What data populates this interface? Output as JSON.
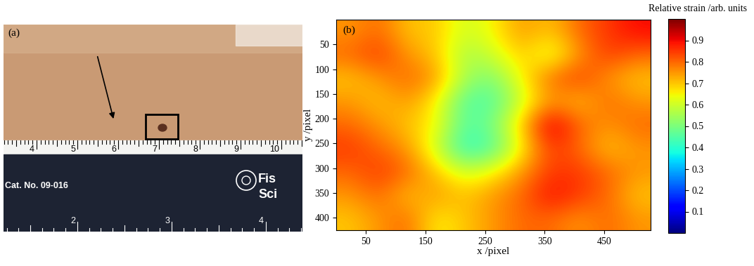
{
  "panel_a": {
    "panel_label": "(a)",
    "ruler": {
      "cm_marks": [
        4,
        5,
        6,
        7,
        8,
        9,
        10
      ],
      "inch_marks": [
        2,
        3,
        4
      ],
      "catalog": "Cat. No. 09-016",
      "brand": [
        "Fis",
        "Sci"
      ]
    }
  },
  "chart_data": {
    "type": "heatmap",
    "panel_label": "(b)",
    "xlabel": "x /pixel",
    "ylabel": "y /pixel",
    "xlim": [
      0,
      528
    ],
    "ylim": [
      425,
      0
    ],
    "xticks": [
      50,
      150,
      250,
      350,
      450
    ],
    "yticks": [
      50,
      100,
      150,
      200,
      250,
      300,
      350,
      400
    ],
    "cells": [
      [
        0.75,
        0.8,
        0.7,
        0.7,
        0.6,
        0.65,
        0.75,
        0.7,
        0.8,
        0.85,
        0.9
      ],
      [
        0.8,
        0.85,
        0.75,
        0.7,
        0.55,
        0.6,
        0.7,
        0.6,
        0.75,
        0.85,
        0.8
      ],
      [
        0.7,
        0.75,
        0.8,
        0.75,
        0.55,
        0.5,
        0.65,
        0.8,
        0.85,
        0.75,
        0.7
      ],
      [
        0.75,
        0.7,
        0.75,
        0.65,
        0.45,
        0.45,
        0.6,
        0.75,
        0.7,
        0.8,
        0.75
      ],
      [
        0.8,
        0.75,
        0.7,
        0.65,
        0.45,
        0.5,
        0.7,
        0.95,
        0.8,
        0.75,
        0.8
      ],
      [
        0.85,
        0.8,
        0.75,
        0.6,
        0.4,
        0.45,
        0.65,
        0.85,
        0.8,
        0.7,
        0.75
      ],
      [
        0.8,
        0.85,
        0.8,
        0.7,
        0.6,
        0.65,
        0.75,
        0.85,
        0.85,
        0.8,
        0.75
      ],
      [
        0.75,
        0.8,
        0.7,
        0.75,
        0.7,
        0.75,
        0.8,
        0.9,
        0.85,
        0.8,
        0.7
      ],
      [
        0.7,
        0.75,
        0.8,
        0.65,
        0.7,
        0.75,
        0.8,
        0.8,
        0.75,
        0.8,
        0.75
      ]
    ],
    "colorbar": {
      "title": "Relative strain /arb. units",
      "range": [
        0,
        1
      ],
      "ticks": [
        0.1,
        0.2,
        0.3,
        0.4,
        0.5,
        0.6,
        0.7,
        0.8,
        0.9
      ]
    }
  }
}
